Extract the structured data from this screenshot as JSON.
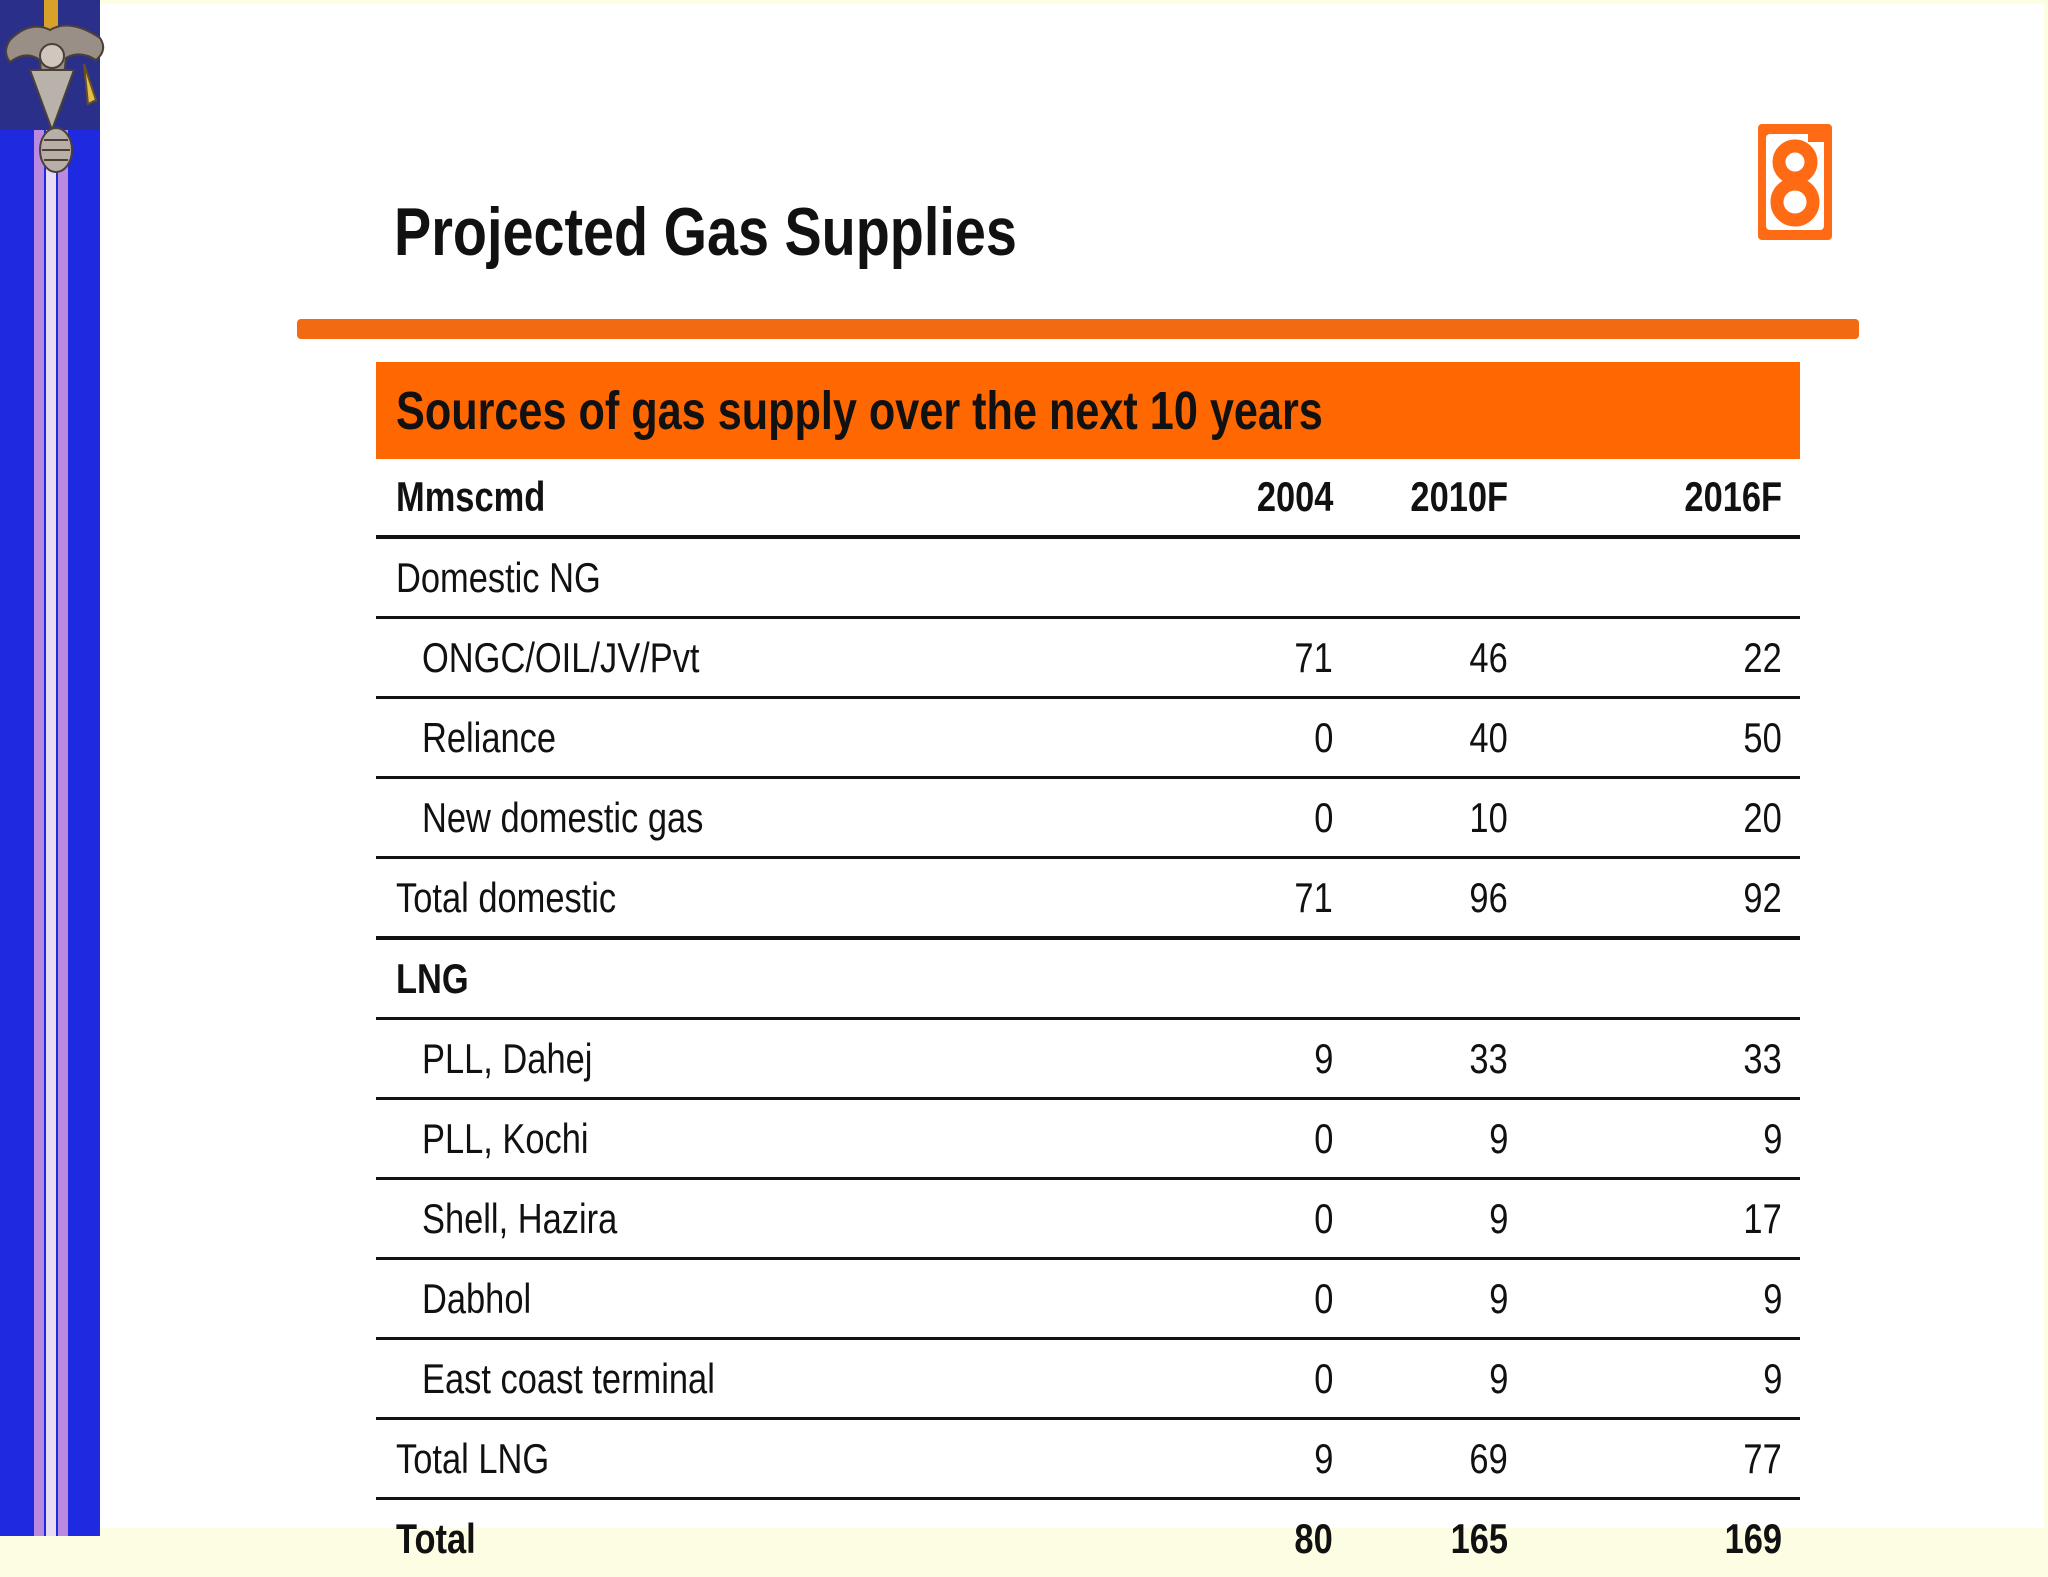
{
  "slide": {
    "title": "Projected Gas Supplies"
  },
  "brand": {
    "accent_color": "#ff6700",
    "logo_letter": "g",
    "emblem_icon": "crest-emblem-icon"
  },
  "table": {
    "caption": "Sources of gas supply over the next 10 years",
    "header": {
      "unit": "Mmscmd",
      "columns": [
        "2004",
        "2010F",
        "2016F"
      ]
    },
    "rows": [
      {
        "label": "Domestic NG",
        "values": [
          "",
          "",
          ""
        ]
      },
      {
        "label": "ONGC/OIL/JV/Pvt",
        "values": [
          "71",
          "46",
          "22"
        ]
      },
      {
        "label": "Reliance",
        "values": [
          "0",
          "40",
          "50"
        ]
      },
      {
        "label": "New domestic gas",
        "values": [
          "0",
          "10",
          "20"
        ]
      },
      {
        "label": "Total domestic",
        "values": [
          "71",
          "96",
          "92"
        ]
      },
      {
        "label": "LNG",
        "values": [
          "",
          "",
          ""
        ]
      },
      {
        "label": "PLL, Dahej",
        "values": [
          "9",
          "33",
          "33"
        ]
      },
      {
        "label": "PLL, Kochi",
        "values": [
          "0",
          "9",
          "9"
        ]
      },
      {
        "label": "Shell, Hazira",
        "values": [
          "0",
          "9",
          "17"
        ]
      },
      {
        "label": "Dabhol",
        "values": [
          "0",
          "9",
          "9"
        ]
      },
      {
        "label": "East coast terminal",
        "values": [
          "0",
          "9",
          "9"
        ]
      },
      {
        "label": "Total LNG",
        "values": [
          "9",
          "69",
          "77"
        ]
      },
      {
        "label": "Total",
        "values": [
          "80",
          "165",
          "169"
        ]
      }
    ]
  }
}
